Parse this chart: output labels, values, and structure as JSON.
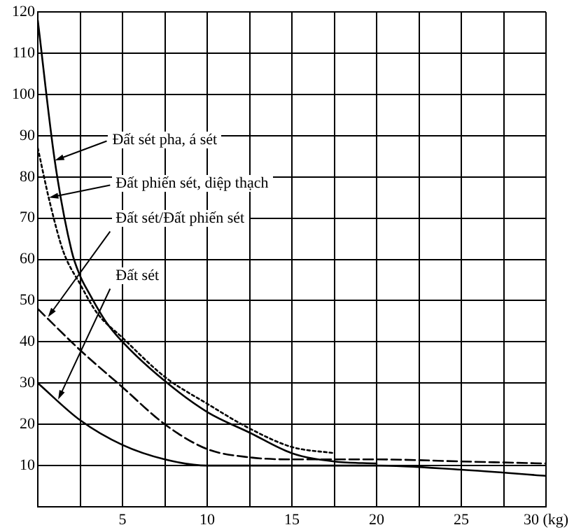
{
  "chart_data": {
    "type": "line",
    "xlim": [
      0,
      30
    ],
    "ylim": [
      0,
      120
    ],
    "xticks": [
      {
        "value": 2.5,
        "label": null
      },
      5,
      {
        "value": 7.5,
        "label": null
      },
      10,
      {
        "value": 12.5,
        "label": null
      },
      15,
      {
        "value": 17.5,
        "label": null
      },
      20,
      {
        "value": 22.5,
        "label": null
      },
      25,
      {
        "value": 27.5,
        "label": null
      },
      {
        "value": 30,
        "label": "30 (kg)"
      }
    ],
    "yticks": [
      10,
      20,
      30,
      40,
      50,
      60,
      70,
      80,
      90,
      100,
      110,
      120
    ],
    "grid": true,
    "legend": false,
    "marker": "none",
    "annotations": [
      {
        "text": "Đất sét pha, á sét",
        "x": 1,
        "y": 84
      },
      {
        "text": "Đất phiến sét, diệp thạch",
        "x": 0.66,
        "y": 75
      },
      {
        "text": "Đất sét/Đất phiến sét",
        "x": 0.6,
        "y": 46
      },
      {
        "text": "Đất sét",
        "x": 1.2,
        "y": 26
      }
    ],
    "series": [
      {
        "color": "#000000",
        "line_style": "solid",
        "x": [
          0,
          1,
          2,
          2.5,
          3,
          4,
          5,
          7.5,
          10,
          12.5,
          15,
          17.5,
          20
        ],
        "values": [
          118,
          84,
          62,
          56,
          52,
          45,
          40,
          30.5,
          23,
          18,
          13,
          11,
          10.5
        ]
      },
      {
        "color": "#000000",
        "line_style": "dotted",
        "x": [
          0,
          0.7,
          1.5,
          2.5,
          3.5,
          5,
          7.5,
          10,
          12.5,
          15,
          17.5
        ],
        "values": [
          87,
          74,
          62,
          54,
          47,
          41,
          31.5,
          25,
          19,
          14.5,
          13
        ]
      },
      {
        "color": "#000000",
        "line_style": "dashed",
        "x": [
          0,
          2.5,
          5,
          7.5,
          10,
          12.5,
          15,
          20,
          25,
          30
        ],
        "values": [
          48,
          38,
          29,
          20,
          14,
          12,
          11.5,
          11.5,
          11,
          10.5
        ]
      },
      {
        "color": "#000000",
        "line_style": "solid",
        "x": [
          0,
          2.5,
          5,
          7.5,
          10,
          15,
          20,
          25,
          30
        ],
        "values": [
          30,
          21,
          15,
          11.5,
          10,
          10,
          10,
          9,
          7.5
        ]
      }
    ]
  }
}
